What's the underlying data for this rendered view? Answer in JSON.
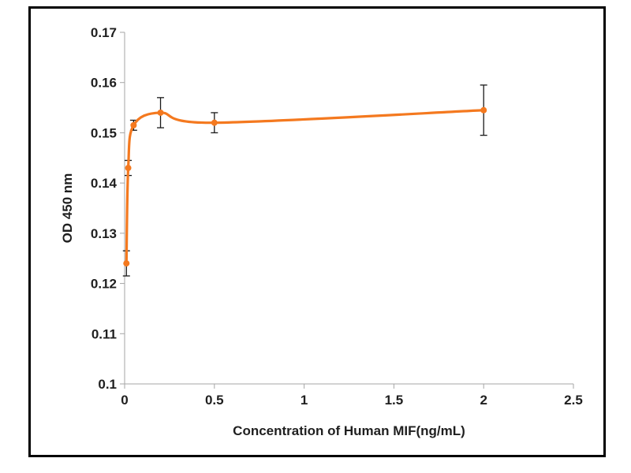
{
  "figure": {
    "background": "#ffffff",
    "frame_color": "#000000"
  },
  "chart_data": {
    "type": "line",
    "title": "",
    "xlabel": "Concentration of Human MIF(ng/mL)",
    "ylabel": "OD 450 nm",
    "xlim": [
      0,
      2.5
    ],
    "ylim": [
      0.1,
      0.17
    ],
    "x_ticks": [
      0,
      0.5,
      1,
      1.5,
      2,
      2.5
    ],
    "x_tick_labels": [
      "0",
      "0.5",
      "1",
      "1.5",
      "2",
      "2.5"
    ],
    "y_ticks": [
      0.1,
      0.11,
      0.12,
      0.13,
      0.14,
      0.15,
      0.16,
      0.17
    ],
    "y_tick_labels": [
      "0.1",
      "0.11",
      "0.12",
      "0.13",
      "0.14",
      "0.15",
      "0.16",
      "0.17"
    ],
    "grid": false,
    "legend_position": "none",
    "axis_color": "#a6a6a6",
    "text_color": "#1f1f1f",
    "error_bar_color": "#1a1a1a",
    "series": [
      {
        "name": "Human MIF",
        "color": "#f4791f",
        "marker": "circle",
        "smooth": true,
        "x": [
          0.01,
          0.02,
          0.05,
          0.2,
          0.5,
          2.0
        ],
        "y": [
          0.124,
          0.143,
          0.1515,
          0.154,
          0.152,
          0.1545
        ],
        "y_err": [
          0.0025,
          0.0015,
          0.001,
          0.003,
          0.002,
          0.005
        ]
      }
    ]
  }
}
